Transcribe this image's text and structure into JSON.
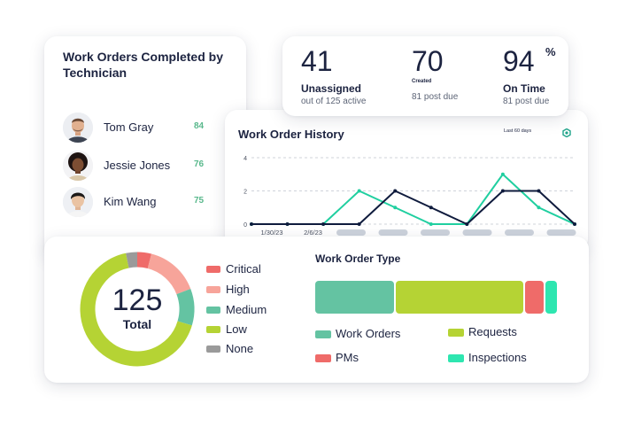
{
  "technicians": {
    "title": "Work Orders Completed by Technician",
    "rows": [
      {
        "name": "Tom Gray",
        "count": "84"
      },
      {
        "name": "Jessie Jones",
        "count": "76"
      },
      {
        "name": "Kim Wang",
        "count": "75"
      }
    ]
  },
  "stats": {
    "unassigned": {
      "value": "41",
      "label": "Unassigned",
      "sub": "out of 125 active"
    },
    "created": {
      "value": "70",
      "label": "Created",
      "sub": "81 post due"
    },
    "on_time": {
      "value": "94",
      "suffix": "%",
      "label": "On Time",
      "sub": "81 post due"
    }
  },
  "history": {
    "title": "Work Order History",
    "range": "Last 60 days",
    "y_ticks": [
      "4",
      "2",
      "0"
    ],
    "x_labels": [
      "1/30/23",
      "2/6/23"
    ],
    "colors": {
      "teal": "#20cfa0",
      "navy": "#0f1b3d",
      "grid": "#cfd3da",
      "placeholder": "#cdd3dc"
    }
  },
  "totals": {
    "number": "125",
    "label": "Total",
    "priority_legend": [
      {
        "label": "Critical",
        "color": "#ef6b69"
      },
      {
        "label": "High",
        "color": "#f7a49a"
      },
      {
        "label": "Medium",
        "color": "#64c3a2"
      },
      {
        "label": "Low",
        "color": "#b5d334"
      },
      {
        "label": "None",
        "color": "#9a9a9a"
      }
    ]
  },
  "work_order_type": {
    "title": "Work Order Type",
    "segments": [
      {
        "label": "Work Orders",
        "color": "#64c3a2",
        "share": 0.33
      },
      {
        "label": "Requests",
        "color": "#b5d334",
        "share": 0.53
      },
      {
        "label": "PMs",
        "color": "#ef6b69",
        "share": 0.085
      },
      {
        "label": "Inspections",
        "color": "#2ee6b0",
        "share": 0.055
      }
    ]
  },
  "chart_data": [
    {
      "type": "line",
      "title": "Work Order History",
      "y_ticks": [
        0,
        2,
        4
      ],
      "ylim": [
        0,
        4
      ],
      "x_tick_labels": [
        "1/30/23",
        "2/6/23"
      ],
      "grid": true,
      "series": [
        {
          "color": "#20cfa0",
          "values": [
            0,
            0,
            0,
            2,
            1,
            0,
            0,
            3,
            1,
            0
          ]
        },
        {
          "color": "#0f1b3d",
          "values": [
            0,
            0,
            0,
            0,
            2,
            1,
            0,
            2,
            2,
            0
          ]
        }
      ]
    },
    {
      "type": "pie",
      "title": "125 Total",
      "categories": [
        "Critical",
        "High",
        "Medium",
        "Low",
        "None"
      ],
      "values": [
        5,
        19,
        13,
        84,
        4
      ]
    }
  ]
}
